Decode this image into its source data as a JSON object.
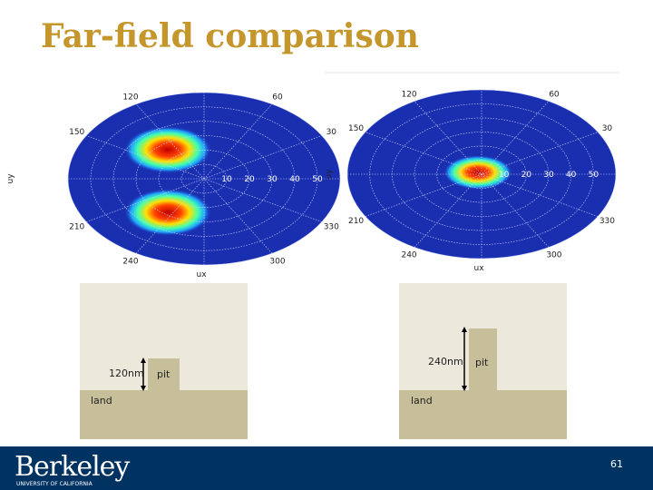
{
  "slide": {
    "title": "Far-field comparison",
    "plots": [
      {
        "angle_labels": [
          "120",
          "60",
          "150",
          "30",
          "210",
          "330",
          "240",
          "300"
        ],
        "radial_labels": [
          "10",
          "20",
          "30",
          "40",
          "50"
        ],
        "x_label": "ux",
        "y_label": "uy"
      },
      {
        "angle_labels": [
          "120",
          "60",
          "150",
          "30",
          "210",
          "330",
          "240",
          "300"
        ],
        "radial_labels": [
          "10",
          "20",
          "30",
          "40",
          "50"
        ],
        "x_label": "ux",
        "y_label": "uy"
      }
    ],
    "diagrams": [
      {
        "dimension": "120nm",
        "pit_label": "pit",
        "land_label": "land"
      },
      {
        "dimension": "240nm",
        "pit_label": "pit",
        "land_label": "land"
      }
    ],
    "footer": {
      "logo": "Berkeley",
      "logo_subtitle": "UNIVERSITY OF CALIFORNIA",
      "page_number": "61"
    }
  }
}
